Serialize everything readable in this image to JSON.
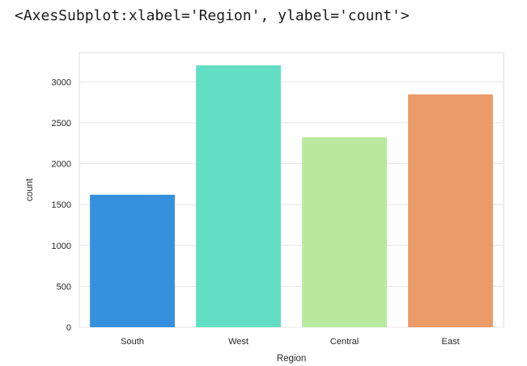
{
  "output_repr": "<AxesSubplot:xlabel='Region', ylabel='count'>",
  "chart_data": {
    "type": "bar",
    "title": "",
    "xlabel": "Region",
    "ylabel": "count",
    "categories": [
      "South",
      "West",
      "Central",
      "East"
    ],
    "values": [
      1620,
      3203,
      2323,
      2848
    ],
    "colors": [
      "#3590dd",
      "#62dec4",
      "#b8e99e",
      "#eb9b67"
    ],
    "ylim": [
      0,
      3360
    ],
    "yticks": [
      0,
      500,
      1000,
      1500,
      2000,
      2500,
      3000
    ],
    "grid": true,
    "legend": "none"
  }
}
